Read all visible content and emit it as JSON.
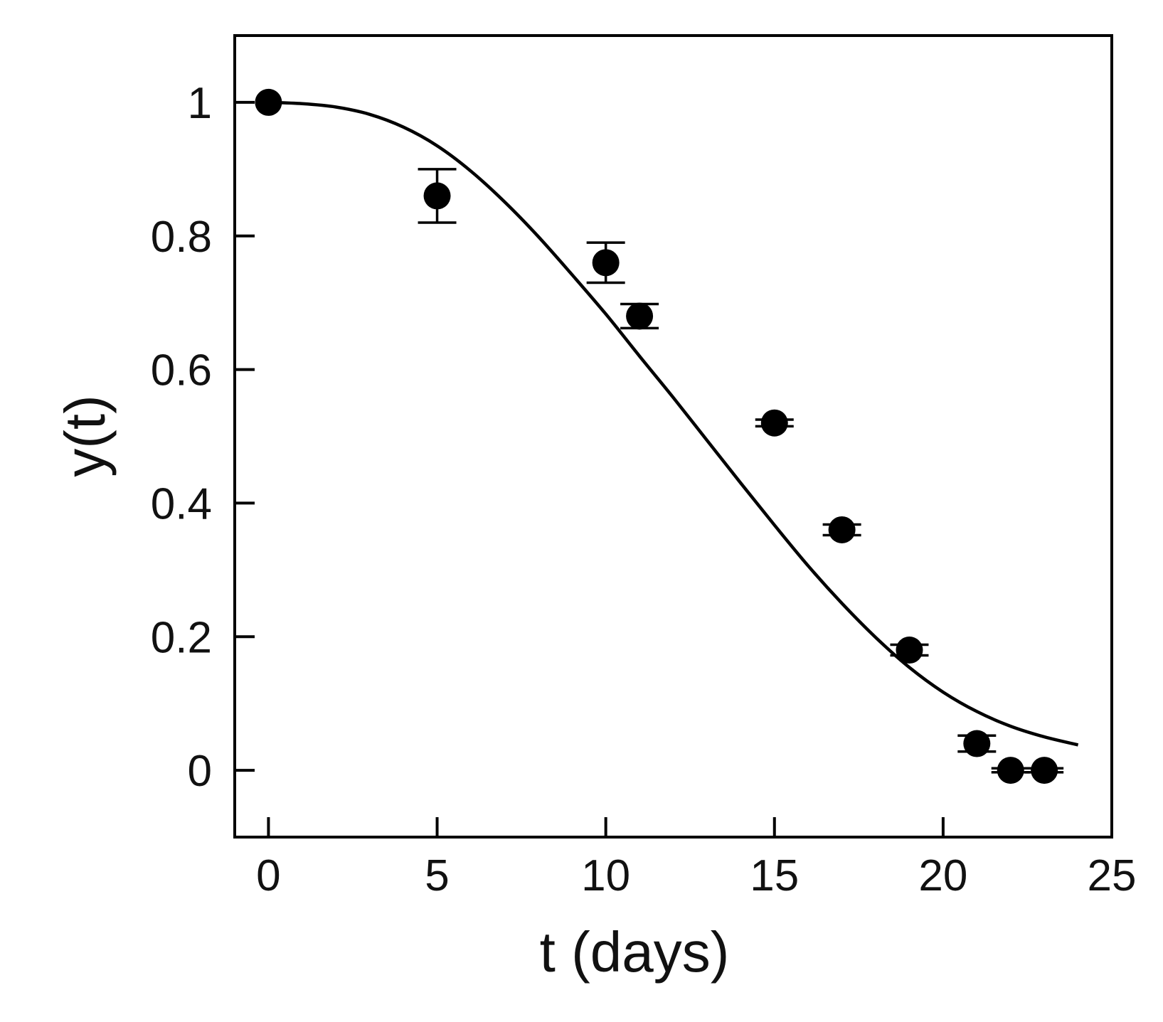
{
  "chart_data": {
    "type": "scatter",
    "xlabel": "t (days)",
    "ylabel": "y(t)",
    "xlim": [
      -1,
      25
    ],
    "ylim": [
      -0.1,
      1.1
    ],
    "xticks": [
      0,
      5,
      10,
      15,
      20,
      25
    ],
    "xtick_labels": [
      "0",
      "5",
      "10",
      "15",
      "20",
      "25"
    ],
    "yticks": [
      0,
      0.2,
      0.4,
      0.6,
      0.8,
      1
    ],
    "ytick_labels": [
      "0",
      "0.2",
      "0.4",
      "0.6",
      "0.8",
      "1"
    ],
    "grid": false,
    "data_points": [
      {
        "t": 0,
        "y": 1.0,
        "err": 0
      },
      {
        "t": 5,
        "y": 0.86,
        "err": 0.04
      },
      {
        "t": 10,
        "y": 0.76,
        "err": 0.03
      },
      {
        "t": 11,
        "y": 0.68,
        "err": 0.018
      },
      {
        "t": 15,
        "y": 0.52,
        "err": 0.005
      },
      {
        "t": 17,
        "y": 0.36,
        "err": 0.008
      },
      {
        "t": 19,
        "y": 0.18,
        "err": 0.008
      },
      {
        "t": 21,
        "y": 0.04,
        "err": 0.012
      },
      {
        "t": 22,
        "y": 0.0,
        "err": 0.003
      },
      {
        "t": 23,
        "y": 0.0,
        "err": 0.003
      }
    ],
    "fit_curve": {
      "t": [
        0,
        1,
        2,
        3,
        4,
        5,
        6,
        7,
        8,
        9,
        10,
        11,
        12,
        13,
        14,
        15,
        16,
        17,
        18,
        19,
        20,
        21,
        22,
        23,
        24
      ],
      "y": [
        1.0,
        0.998,
        0.993,
        0.982,
        0.963,
        0.935,
        0.897,
        0.851,
        0.799,
        0.742,
        0.683,
        0.62,
        0.558,
        0.494,
        0.43,
        0.367,
        0.306,
        0.25,
        0.199,
        0.154,
        0.117,
        0.088,
        0.066,
        0.05,
        0.038
      ]
    }
  }
}
